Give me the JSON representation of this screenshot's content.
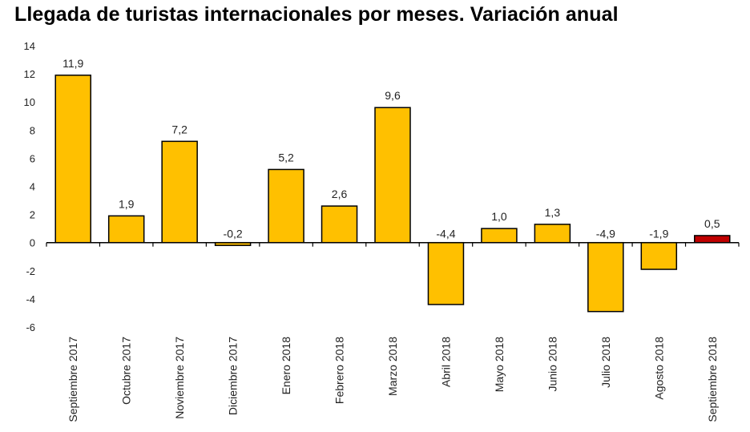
{
  "chart_data": {
    "type": "bar",
    "title": "Llegada de turistas internacionales por meses. Variación anual",
    "xlabel": "",
    "ylabel": "",
    "ylim": [
      -6,
      14
    ],
    "yticks": [
      14,
      12,
      10,
      8,
      6,
      4,
      2,
      0,
      -2,
      -4,
      -6
    ],
    "grid": false,
    "categories": [
      "Septiembre 2017",
      "Octubre 2017",
      "Noviembre 2017",
      "Diciembre 2017",
      "Enero 2018",
      "Febrero 2018",
      "Marzo 2018",
      "Abril 2018",
      "Mayo 2018",
      "Junio 2018",
      "Julio 2018",
      "Agosto 2018",
      "Septiembre 2018"
    ],
    "values": [
      11.9,
      1.9,
      7.2,
      -0.2,
      5.2,
      2.6,
      9.6,
      -4.4,
      1.0,
      1.3,
      -4.9,
      -1.9,
      0.5
    ],
    "value_labels": [
      "11,9",
      "1,9",
      "7,2",
      "-0,2",
      "5,2",
      "2,6",
      "9,6",
      "-4,4",
      "1,0",
      "1,3",
      "-4,9",
      "-1,9",
      "0,5"
    ],
    "colors": {
      "default": "#FFC000",
      "highlight": "#C00000",
      "outline": "#000000"
    },
    "highlight_index": 12
  }
}
